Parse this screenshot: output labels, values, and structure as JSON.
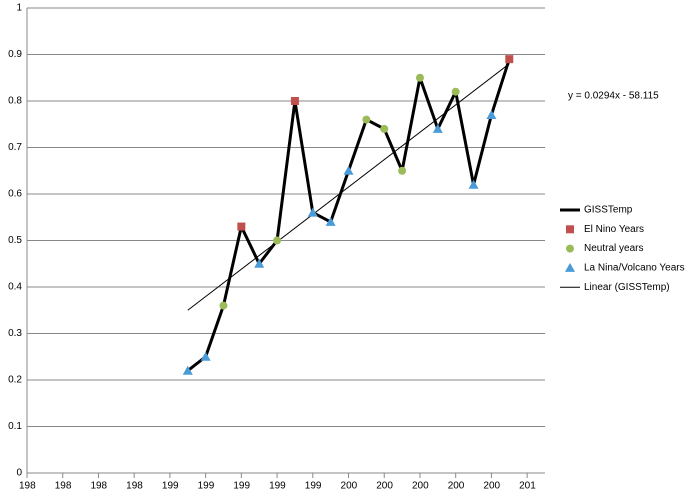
{
  "chart_data": {
    "type": "line",
    "xlim": [
      1982,
      2011
    ],
    "ylim": [
      0,
      1
    ],
    "xticks": [
      {
        "value": 1982,
        "label": "198"
      },
      {
        "value": 1984,
        "label": "198"
      },
      {
        "value": 1986,
        "label": "198"
      },
      {
        "value": 1988,
        "label": "198"
      },
      {
        "value": 1990,
        "label": "199"
      },
      {
        "value": 1992,
        "label": "199"
      },
      {
        "value": 1994,
        "label": "199"
      },
      {
        "value": 1996,
        "label": "199"
      },
      {
        "value": 1998,
        "label": "199"
      },
      {
        "value": 2000,
        "label": "200"
      },
      {
        "value": 2002,
        "label": "200"
      },
      {
        "value": 2004,
        "label": "200"
      },
      {
        "value": 2006,
        "label": "200"
      },
      {
        "value": 2008,
        "label": "200"
      },
      {
        "value": 2010,
        "label": "201"
      }
    ],
    "yticks": [
      0,
      0.1,
      0.2,
      0.3,
      0.4,
      0.5,
      0.6,
      0.7,
      0.8,
      0.9,
      1
    ],
    "grid": true,
    "legend": "right",
    "annotation": "y = 0.0294x - 58.115",
    "series": [
      {
        "name": "GISSTemp",
        "color": "#000000",
        "line_width": 3,
        "marker": "none",
        "x": [
          1991,
          1992,
          1993,
          1994,
          1995,
          1996,
          1997,
          1998,
          1999,
          2000,
          2001,
          2002,
          2003,
          2004,
          2005,
          2006,
          2007,
          2008,
          2009
        ],
        "values": [
          0.22,
          0.25,
          0.36,
          0.53,
          0.45,
          0.5,
          0.8,
          0.56,
          0.54,
          0.65,
          0.76,
          0.74,
          0.65,
          0.85,
          0.74,
          0.82,
          0.62,
          0.77,
          0.89
        ]
      },
      {
        "name": "El Nino Years",
        "color": "#c0504d",
        "line_width": 0,
        "marker": "square",
        "x": [
          1994,
          1997,
          2009
        ],
        "values": [
          0.53,
          0.8,
          0.89
        ]
      },
      {
        "name": "Neutral years",
        "color": "#9bbb59",
        "line_width": 0,
        "marker": "circle",
        "x": [
          1993,
          1996,
          2001,
          2002,
          2003,
          2004,
          2006
        ],
        "values": [
          0.36,
          0.5,
          0.76,
          0.74,
          0.65,
          0.85,
          0.82
        ]
      },
      {
        "name": "La Nina/Volcano  Years",
        "color": "#4a9bd8",
        "line_width": 0,
        "marker": "triangle",
        "x": [
          1991,
          1992,
          1995,
          1998,
          1999,
          2000,
          2005,
          2007,
          2008
        ],
        "values": [
          0.22,
          0.25,
          0.45,
          0.56,
          0.54,
          0.65,
          0.74,
          0.62,
          0.77
        ]
      },
      {
        "name": "Linear (GISSTemp)",
        "color": "#000000",
        "line_width": 1,
        "marker": "none",
        "x": [
          1991,
          2009
        ],
        "values": [
          0.35,
          0.88
        ]
      }
    ]
  }
}
